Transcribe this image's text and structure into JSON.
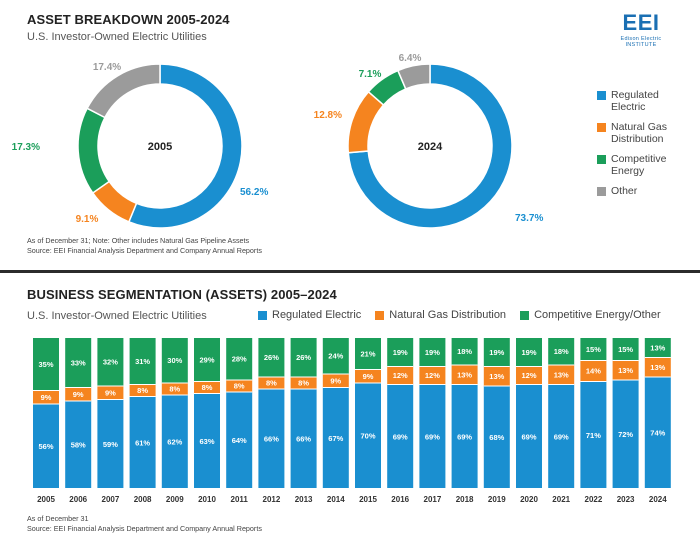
{
  "colors": {
    "regulated": "#1a8fd0",
    "gas": "#f5841f",
    "competitive": "#1b9e5a",
    "other": "#9b9b9b"
  },
  "top": {
    "title": "ASSET BREAKDOWN 2005-2024",
    "subtitle": "U.S. Investor-Owned Electric Utilities",
    "note": "As of December 31; Note: Other includes Natural Gas Pipeline Assets",
    "source": "Source: EEI Financial Analysis Department and Company Annual Reports"
  },
  "logo": {
    "text": "EEI",
    "line1": "Edison Electric",
    "line2": "INSTITUTE"
  },
  "legend_top": [
    {
      "key": "regulated",
      "label1": "Regulated",
      "label2": "Electric"
    },
    {
      "key": "gas",
      "label1": "Natural Gas",
      "label2": "Distribution"
    },
    {
      "key": "competitive",
      "label1": "Competitive",
      "label2": "Energy"
    },
    {
      "key": "other",
      "label1": "Other",
      "label2": ""
    }
  ],
  "bottom": {
    "title": "BUSINESS SEGMENTATION (ASSETS) 2005–2024",
    "subtitle": "U.S. Investor-Owned Electric Utilities",
    "note": "As of December 31",
    "source": "Source: EEI Financial Analysis Department and Company Annual Reports"
  },
  "legend_bottom": [
    {
      "key": "regulated",
      "label": "Regulated Electric"
    },
    {
      "key": "gas",
      "label": "Natural Gas Distribution"
    },
    {
      "key": "competitive",
      "label": "Competitive Energy/Other"
    }
  ],
  "chart_data": [
    {
      "type": "pie",
      "title": "2005",
      "slices": [
        {
          "name": "Regulated Electric",
          "value": 56.2,
          "label": "56.2%"
        },
        {
          "name": "Natural Gas Distribution",
          "value": 9.1,
          "label": "9.1%"
        },
        {
          "name": "Competitive Energy",
          "value": 17.3,
          "label": "17.3%"
        },
        {
          "name": "Other",
          "value": 17.4,
          "label": "17.4%"
        }
      ]
    },
    {
      "type": "pie",
      "title": "2024",
      "slices": [
        {
          "name": "Regulated Electric",
          "value": 73.7,
          "label": "73.7%"
        },
        {
          "name": "Natural Gas Distribution",
          "value": 12.8,
          "label": "12.8%"
        },
        {
          "name": "Competitive Energy",
          "value": 7.1,
          "label": "7.1%"
        },
        {
          "name": "Other",
          "value": 6.4,
          "label": "6.4%"
        }
      ]
    },
    {
      "type": "bar",
      "stacked": true,
      "title": "BUSINESS SEGMENTATION (ASSETS) 2005–2024",
      "categories": [
        "2005",
        "2006",
        "2007",
        "2008",
        "2009",
        "2010",
        "2011",
        "2012",
        "2013",
        "2014",
        "2015",
        "2016",
        "2017",
        "2018",
        "2019",
        "2020",
        "2021",
        "2022",
        "2023",
        "2024"
      ],
      "series": [
        {
          "name": "Regulated Electric",
          "values": [
            56,
            58,
            59,
            61,
            62,
            63,
            64,
            66,
            66,
            67,
            70,
            69,
            69,
            69,
            68,
            69,
            69,
            71,
            72,
            74
          ]
        },
        {
          "name": "Natural Gas Distribution",
          "values": [
            9,
            9,
            9,
            8,
            8,
            8,
            8,
            8,
            8,
            9,
            9,
            12,
            12,
            13,
            13,
            12,
            13,
            14,
            13,
            13
          ]
        },
        {
          "name": "Competitive Energy/Other",
          "values": [
            35,
            33,
            32,
            31,
            30,
            29,
            28,
            26,
            26,
            24,
            21,
            19,
            19,
            18,
            19,
            19,
            18,
            15,
            15,
            13
          ]
        }
      ],
      "ylim": [
        0,
        100
      ]
    }
  ]
}
